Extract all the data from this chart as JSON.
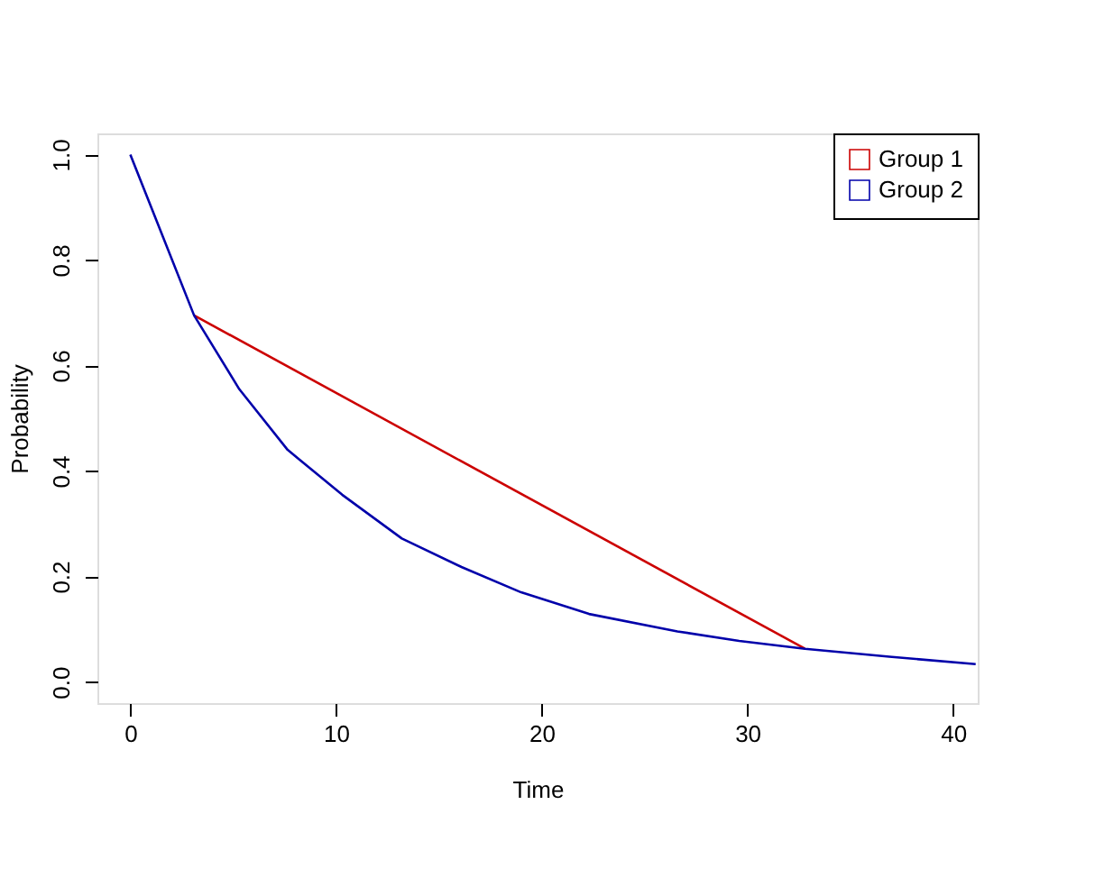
{
  "chart_data": {
    "type": "line",
    "xlabel": "Time",
    "ylabel": "Probability",
    "xlim": [
      -1.6,
      41.2
    ],
    "ylim": [
      -0.04,
      1.04
    ],
    "xticks": [
      0,
      10,
      20,
      30,
      40
    ],
    "yticks": [
      {
        "value": 0,
        "label": "0.0"
      },
      {
        "value": 0.2,
        "label": "0.2"
      },
      {
        "value": 0.4,
        "label": "0.4"
      },
      {
        "value": 0.6,
        "label": "0.6"
      },
      {
        "value": 0.8,
        "label": "0.8"
      },
      {
        "value": 1,
        "label": "1.0"
      }
    ],
    "legend": "top right",
    "grid": false,
    "series": [
      {
        "name": "Group 1",
        "color": "#cc0000",
        "x": [
          3.1,
          32.8
        ],
        "values": [
          0.695,
          0.063
        ]
      },
      {
        "name": "Group 2",
        "color": "#0000aa",
        "x": [
          0,
          3.1,
          5.3,
          7.65,
          10.3,
          13.2,
          16.1,
          19.0,
          22.3,
          26.6,
          29.6,
          32.8,
          36.9,
          41.1
        ],
        "values": [
          1.0,
          0.695,
          0.555,
          0.44,
          0.355,
          0.272,
          0.218,
          0.17,
          0.129,
          0.096,
          0.078,
          0.063,
          0.048,
          0.034
        ]
      }
    ]
  }
}
